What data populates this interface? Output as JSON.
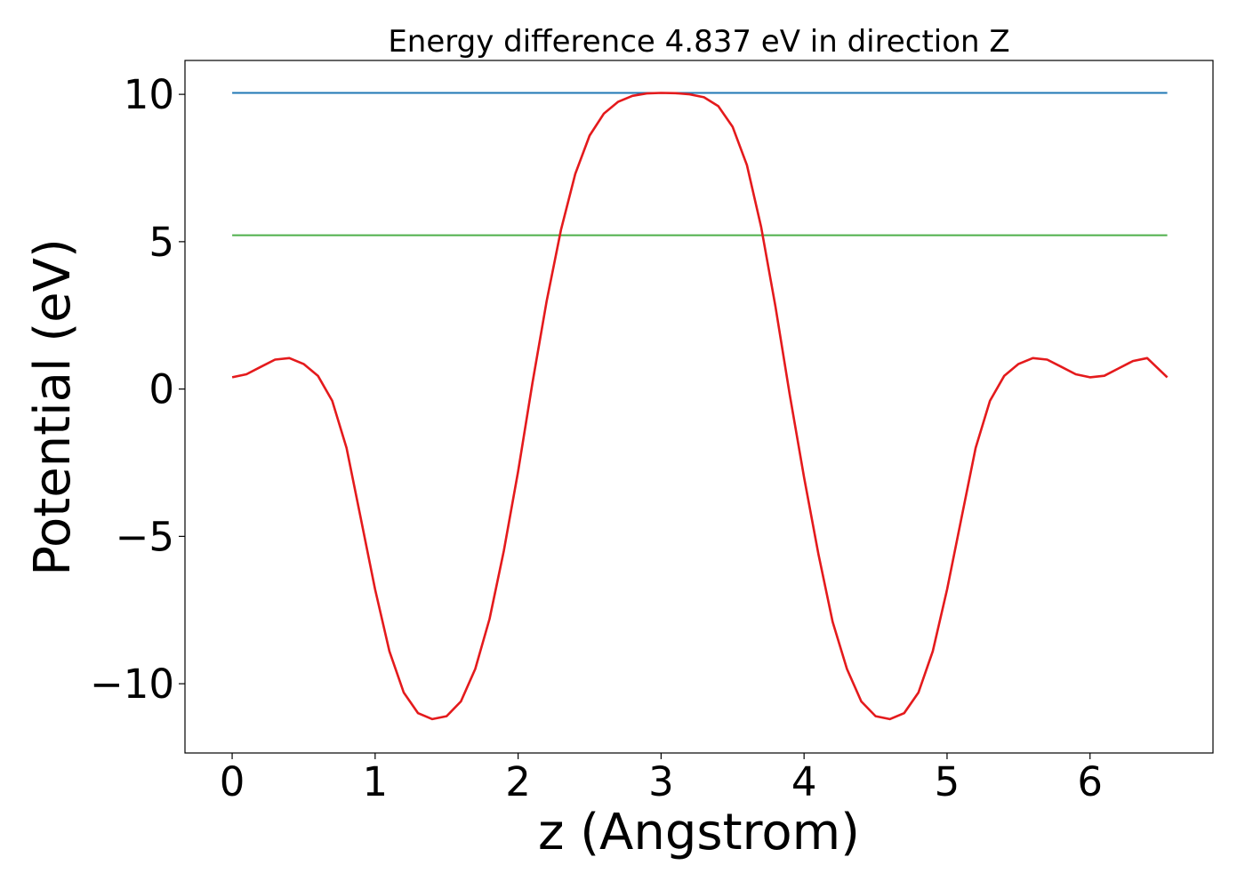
{
  "chart_data": {
    "type": "line",
    "title": "Energy difference 4.837 eV in direction Z",
    "xlabel": "z (Angstrom)",
    "ylabel": "Potential (eV)",
    "xlim": [
      -0.33,
      6.86
    ],
    "ylim": [
      -12.35,
      11.15
    ],
    "x_ticks": [
      0,
      1,
      2,
      3,
      4,
      5,
      6
    ],
    "x_tick_labels": [
      "0",
      "1",
      "2",
      "3",
      "4",
      "5",
      "6"
    ],
    "y_ticks": [
      -10,
      -5,
      0,
      5,
      10
    ],
    "y_tick_labels": [
      "−10",
      "−5",
      "0",
      "5",
      "10"
    ],
    "grid": false,
    "series": [
      {
        "color": "#1f77b4",
        "kind": "hline",
        "x": [
          0,
          6.54
        ],
        "y": [
          10.05,
          10.05
        ]
      },
      {
        "color": "#4daf4a",
        "kind": "hline",
        "x": [
          0,
          6.54
        ],
        "y": [
          5.22,
          5.22
        ]
      },
      {
        "color": "#e41a1c",
        "kind": "curve",
        "x": [
          0,
          0.1,
          0.2,
          0.3,
          0.4,
          0.5,
          0.6,
          0.7,
          0.8,
          0.9,
          1.0,
          1.1,
          1.2,
          1.3,
          1.4,
          1.5,
          1.6,
          1.7,
          1.8,
          1.9,
          2.0,
          2.1,
          2.2,
          2.3,
          2.4,
          2.5,
          2.6,
          2.7,
          2.8,
          2.9,
          3.0,
          3.1,
          3.2,
          3.3,
          3.4,
          3.5,
          3.6,
          3.7,
          3.8,
          3.9,
          4.0,
          4.1,
          4.2,
          4.3,
          4.4,
          4.5,
          4.6,
          4.7,
          4.8,
          4.9,
          5.0,
          5.1,
          5.2,
          5.3,
          5.4,
          5.5,
          5.6,
          5.7,
          5.8,
          5.9,
          6.0,
          6.1,
          6.2,
          6.3,
          6.4,
          6.54
        ],
        "y": [
          0.4,
          0.5,
          0.75,
          1.0,
          1.05,
          0.85,
          0.45,
          -0.4,
          -2.0,
          -4.4,
          -6.8,
          -8.9,
          -10.3,
          -11.0,
          -11.2,
          -11.1,
          -10.6,
          -9.5,
          -7.8,
          -5.5,
          -2.8,
          0.2,
          3.0,
          5.4,
          7.3,
          8.6,
          9.35,
          9.75,
          9.95,
          10.03,
          10.05,
          10.04,
          10.0,
          9.9,
          9.6,
          8.9,
          7.6,
          5.5,
          2.8,
          -0.2,
          -3.0,
          -5.6,
          -7.9,
          -9.5,
          -10.6,
          -11.1,
          -11.2,
          -11.0,
          -10.3,
          -8.9,
          -6.8,
          -4.4,
          -2.0,
          -0.4,
          0.45,
          0.85,
          1.05,
          1.0,
          0.75,
          0.5,
          0.4,
          0.45,
          0.7,
          0.95,
          1.05,
          0.4
        ]
      }
    ]
  }
}
